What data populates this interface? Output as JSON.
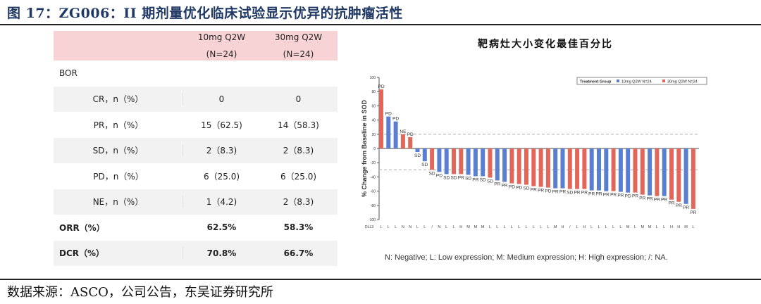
{
  "figure": {
    "title": "图 17：ZG006：II 期剂量优化临床试验显示优异的抗肿瘤活性",
    "source": "数据来源：ASCO，公司公告，东吴证券研究所"
  },
  "table": {
    "columns": [
      {
        "name": "10mg Q2W",
        "n": "(N=24)"
      },
      {
        "name": "30mg Q2W",
        "n": "(N=24)"
      }
    ],
    "section": "BOR",
    "rows": [
      {
        "label": "CR，n（%）",
        "v1": "0",
        "v2": "0"
      },
      {
        "label": "PR，n（%）",
        "v1": "15（62.5)",
        "v2": "14（58.3)"
      },
      {
        "label": "SD，n（%）",
        "v1": "2（8.3)",
        "v2": "2（8.3)"
      },
      {
        "label": "PD，n（%）",
        "v1": "6（25.0)",
        "v2": "6（25.0)"
      },
      {
        "label": "NE，n（%）",
        "v1": "1（4.2)",
        "v2": "2（8.3)"
      }
    ],
    "summary": [
      {
        "label": "ORR（%）",
        "v1": "62.5%",
        "v2": "58.3%"
      },
      {
        "label": "DCR（%）",
        "v1": "70.8%",
        "v2": "66.7%"
      }
    ]
  },
  "chart_data": {
    "type": "bar",
    "title": "靶病灶大小变化最佳百分比",
    "ylabel": "% Change from Baseline in SOD",
    "ylim": [
      -100,
      100
    ],
    "yticks": [
      100,
      80,
      60,
      40,
      20,
      0,
      -20,
      -40,
      -60,
      -80,
      -100
    ],
    "reference_lines": [
      20,
      -30
    ],
    "xrow_label": "DLL3",
    "legend": {
      "title": "Treatment Group",
      "placement": "top-right",
      "items": [
        {
          "name": "10mg Q2W N=24",
          "color": "#5b7fd0"
        },
        {
          "name": "30mg Q2W N=24",
          "color": "#e0675a"
        }
      ]
    },
    "footnote": "N: Negative; L: Low expression; M: Medium expression; H: High expression; /: NA.",
    "bars": [
      {
        "v": 83,
        "g": "30mg",
        "r": "PD",
        "d": "L"
      },
      {
        "v": 45,
        "g": "10mg",
        "r": "PD",
        "d": "L"
      },
      {
        "v": 38,
        "g": "10mg",
        "r": "PD",
        "d": "L"
      },
      {
        "v": 20,
        "g": "30mg",
        "r": "NE",
        "d": "N"
      },
      {
        "v": 16,
        "g": "30mg",
        "r": "PD",
        "d": "N"
      },
      {
        "v": -5,
        "g": "10mg",
        "r": "SD",
        "d": "L"
      },
      {
        "v": -18,
        "g": "10mg",
        "r": "SD",
        "d": "L"
      },
      {
        "v": -30,
        "g": "30mg",
        "r": "SD",
        "d": "/"
      },
      {
        "v": -33,
        "g": "10mg",
        "r": "PD",
        "d": "N"
      },
      {
        "v": -36,
        "g": "10mg",
        "r": "SD",
        "d": "L"
      },
      {
        "v": -36,
        "g": "30mg",
        "r": "SD",
        "d": "L"
      },
      {
        "v": -36,
        "g": "30mg",
        "r": "PR",
        "d": "H"
      },
      {
        "v": -37,
        "g": "10mg",
        "r": "SD",
        "d": "M"
      },
      {
        "v": -39,
        "g": "10mg",
        "r": "PR",
        "d": "M"
      },
      {
        "v": -39,
        "g": "10mg",
        "r": "SD",
        "d": "M"
      },
      {
        "v": -41,
        "g": "30mg",
        "r": "SD",
        "d": "L"
      },
      {
        "v": -45,
        "g": "10mg",
        "r": "PR",
        "d": "L"
      },
      {
        "v": -47,
        "g": "10mg",
        "r": "PR",
        "d": "L"
      },
      {
        "v": -49,
        "g": "30mg",
        "r": "PD",
        "d": "L"
      },
      {
        "v": -50,
        "g": "30mg",
        "r": "PD",
        "d": "L"
      },
      {
        "v": -51,
        "g": "30mg",
        "r": "SD",
        "d": "L"
      },
      {
        "v": -53,
        "g": "30mg",
        "r": "PR",
        "d": "L"
      },
      {
        "v": -54,
        "g": "30mg",
        "r": "PR",
        "d": "L"
      },
      {
        "v": -55,
        "g": "30mg",
        "r": "PD",
        "d": "L"
      },
      {
        "v": -56,
        "g": "10mg",
        "r": "PR",
        "d": "M"
      },
      {
        "v": -56,
        "g": "10mg",
        "r": "PR",
        "d": "H"
      },
      {
        "v": -57,
        "g": "30mg",
        "r": "SD",
        "d": "/"
      },
      {
        "v": -57,
        "g": "30mg",
        "r": "PR",
        "d": "L"
      },
      {
        "v": -57,
        "g": "30mg",
        "r": "PR",
        "d": "H"
      },
      {
        "v": -59,
        "g": "10mg",
        "r": "PR",
        "d": "L"
      },
      {
        "v": -59,
        "g": "10mg",
        "r": "PR",
        "d": "L"
      },
      {
        "v": -60,
        "g": "10mg",
        "r": "PR",
        "d": "L"
      },
      {
        "v": -60,
        "g": "30mg",
        "r": "PR",
        "d": "L"
      },
      {
        "v": -61,
        "g": "10mg",
        "r": "PR",
        "d": "L"
      },
      {
        "v": -62,
        "g": "10mg",
        "r": "PD",
        "d": "M"
      },
      {
        "v": -62,
        "g": "30mg",
        "r": "PR",
        "d": "L"
      },
      {
        "v": -65,
        "g": "30mg",
        "r": "PR",
        "d": "M"
      },
      {
        "v": -66,
        "g": "10mg",
        "r": "PR",
        "d": "M"
      },
      {
        "v": -67,
        "g": "30mg",
        "r": "PR",
        "d": "L"
      },
      {
        "v": -67,
        "g": "10mg",
        "r": "PR",
        "d": "L"
      },
      {
        "v": -72,
        "g": "30mg",
        "r": "PR",
        "d": "H"
      },
      {
        "v": -75,
        "g": "30mg",
        "r": "PR",
        "d": "H"
      },
      {
        "v": -78,
        "g": "10mg",
        "r": "PR",
        "d": "M"
      },
      {
        "v": -85,
        "g": "30mg",
        "r": "PR",
        "d": "L"
      }
    ]
  }
}
